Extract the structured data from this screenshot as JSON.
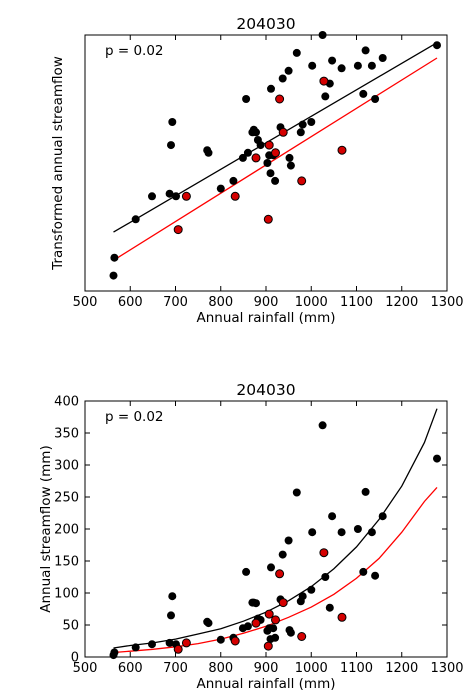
{
  "chart_data": [
    {
      "type": "scatter",
      "title": "204030",
      "annotation": "p = 0.02",
      "xlabel": "Annual rainfall (mm)",
      "ylabel": "Transformed annual streamflow",
      "xlim": [
        500,
        1300
      ],
      "ylim": [
        0,
        1
      ],
      "xticks": [
        500,
        600,
        700,
        800,
        900,
        1000,
        1100,
        1200,
        1300
      ],
      "yticks": [],
      "grid": false,
      "colors": {
        "black": "#000000",
        "red": "#ff0000",
        "red_marker": "#d40000"
      },
      "black_points": {
        "x": [
          563,
          565,
          612,
          648,
          687,
          690,
          693,
          701,
          770,
          773,
          800,
          828,
          849,
          856,
          860,
          870,
          873,
          878,
          882,
          888,
          903,
          907,
          910,
          911,
          916,
          920,
          932,
          937,
          950,
          952,
          955,
          968,
          977,
          981,
          1000,
          1002,
          1025,
          1031,
          1041,
          1046,
          1067,
          1103,
          1115,
          1120,
          1134,
          1141,
          1158,
          1278
        ],
        "y": [
          0.06,
          0.13,
          0.28,
          0.37,
          0.38,
          0.57,
          0.66,
          0.37,
          0.55,
          0.54,
          0.4,
          0.43,
          0.52,
          0.75,
          0.54,
          0.62,
          0.63,
          0.62,
          0.59,
          0.57,
          0.5,
          0.53,
          0.46,
          0.79,
          0.53,
          0.43,
          0.64,
          0.83,
          0.86,
          0.52,
          0.49,
          0.93,
          0.62,
          0.65,
          0.66,
          0.88,
          1.0,
          0.76,
          0.81,
          0.9,
          0.87,
          0.88,
          0.77,
          0.94,
          0.88,
          0.75,
          0.91,
          0.96
        ]
      },
      "red_points": {
        "x": [
          706,
          724,
          832,
          878,
          905,
          907,
          921,
          930,
          938,
          979,
          1028,
          1068
        ],
        "y": [
          0.24,
          0.37,
          0.37,
          0.52,
          0.28,
          0.57,
          0.54,
          0.75,
          0.62,
          0.43,
          0.82,
          0.55
        ]
      },
      "black_line": {
        "x": [
          563,
          1278
        ],
        "y": [
          0.23,
          0.97
        ]
      },
      "red_line": {
        "x": [
          563,
          1278
        ],
        "y": [
          0.12,
          0.91
        ]
      }
    },
    {
      "type": "scatter",
      "title": "204030",
      "annotation": "p = 0.02",
      "xlabel": "Annual rainfall (mm)",
      "ylabel": "Annual streamflow (mm)",
      "xlim": [
        500,
        1300
      ],
      "ylim": [
        0,
        400
      ],
      "xticks": [
        500,
        600,
        700,
        800,
        900,
        1000,
        1100,
        1200,
        1300
      ],
      "yticks": [
        0,
        50,
        100,
        150,
        200,
        250,
        300,
        350,
        400
      ],
      "grid": false,
      "colors": {
        "black": "#000000",
        "red": "#ff0000",
        "red_marker": "#d40000"
      },
      "black_points": {
        "x": [
          563,
          565,
          612,
          648,
          687,
          690,
          693,
          701,
          770,
          773,
          800,
          828,
          849,
          856,
          860,
          870,
          873,
          878,
          882,
          888,
          903,
          907,
          910,
          911,
          916,
          920,
          932,
          937,
          950,
          952,
          955,
          968,
          977,
          981,
          1000,
          1002,
          1025,
          1031,
          1041,
          1046,
          1067,
          1103,
          1115,
          1120,
          1134,
          1141,
          1158,
          1278
        ],
        "y": [
          3,
          7,
          15,
          20,
          22,
          65,
          95,
          20,
          55,
          53,
          27,
          30,
          45,
          133,
          48,
          85,
          85,
          84,
          60,
          58,
          41,
          45,
          28,
          140,
          45,
          30,
          90,
          160,
          182,
          42,
          38,
          257,
          87,
          95,
          105,
          195,
          362,
          125,
          77,
          220,
          195,
          200,
          133,
          258,
          195,
          127,
          220,
          310
        ]
      },
      "red_points": {
        "x": [
          706,
          724,
          832,
          878,
          905,
          907,
          921,
          930,
          938,
          979,
          1028,
          1068
        ],
        "y": [
          12,
          22,
          25,
          53,
          17,
          67,
          58,
          130,
          85,
          32,
          163,
          62
        ]
      },
      "black_line": {
        "x": [
          563,
          600,
          650,
          700,
          750,
          800,
          850,
          900,
          950,
          1000,
          1050,
          1100,
          1150,
          1200,
          1250,
          1278
        ],
        "y": [
          14,
          18,
          22,
          28,
          36,
          44,
          56,
          70,
          88,
          110,
          138,
          172,
          215,
          267,
          335,
          388
        ]
      },
      "red_line": {
        "x": [
          563,
          600,
          650,
          700,
          750,
          800,
          850,
          900,
          950,
          1000,
          1050,
          1100,
          1150,
          1200,
          1250,
          1278
        ],
        "y": [
          7,
          9,
          12,
          16,
          21,
          28,
          37,
          48,
          62,
          78,
          98,
          123,
          154,
          195,
          243,
          265
        ]
      }
    }
  ]
}
